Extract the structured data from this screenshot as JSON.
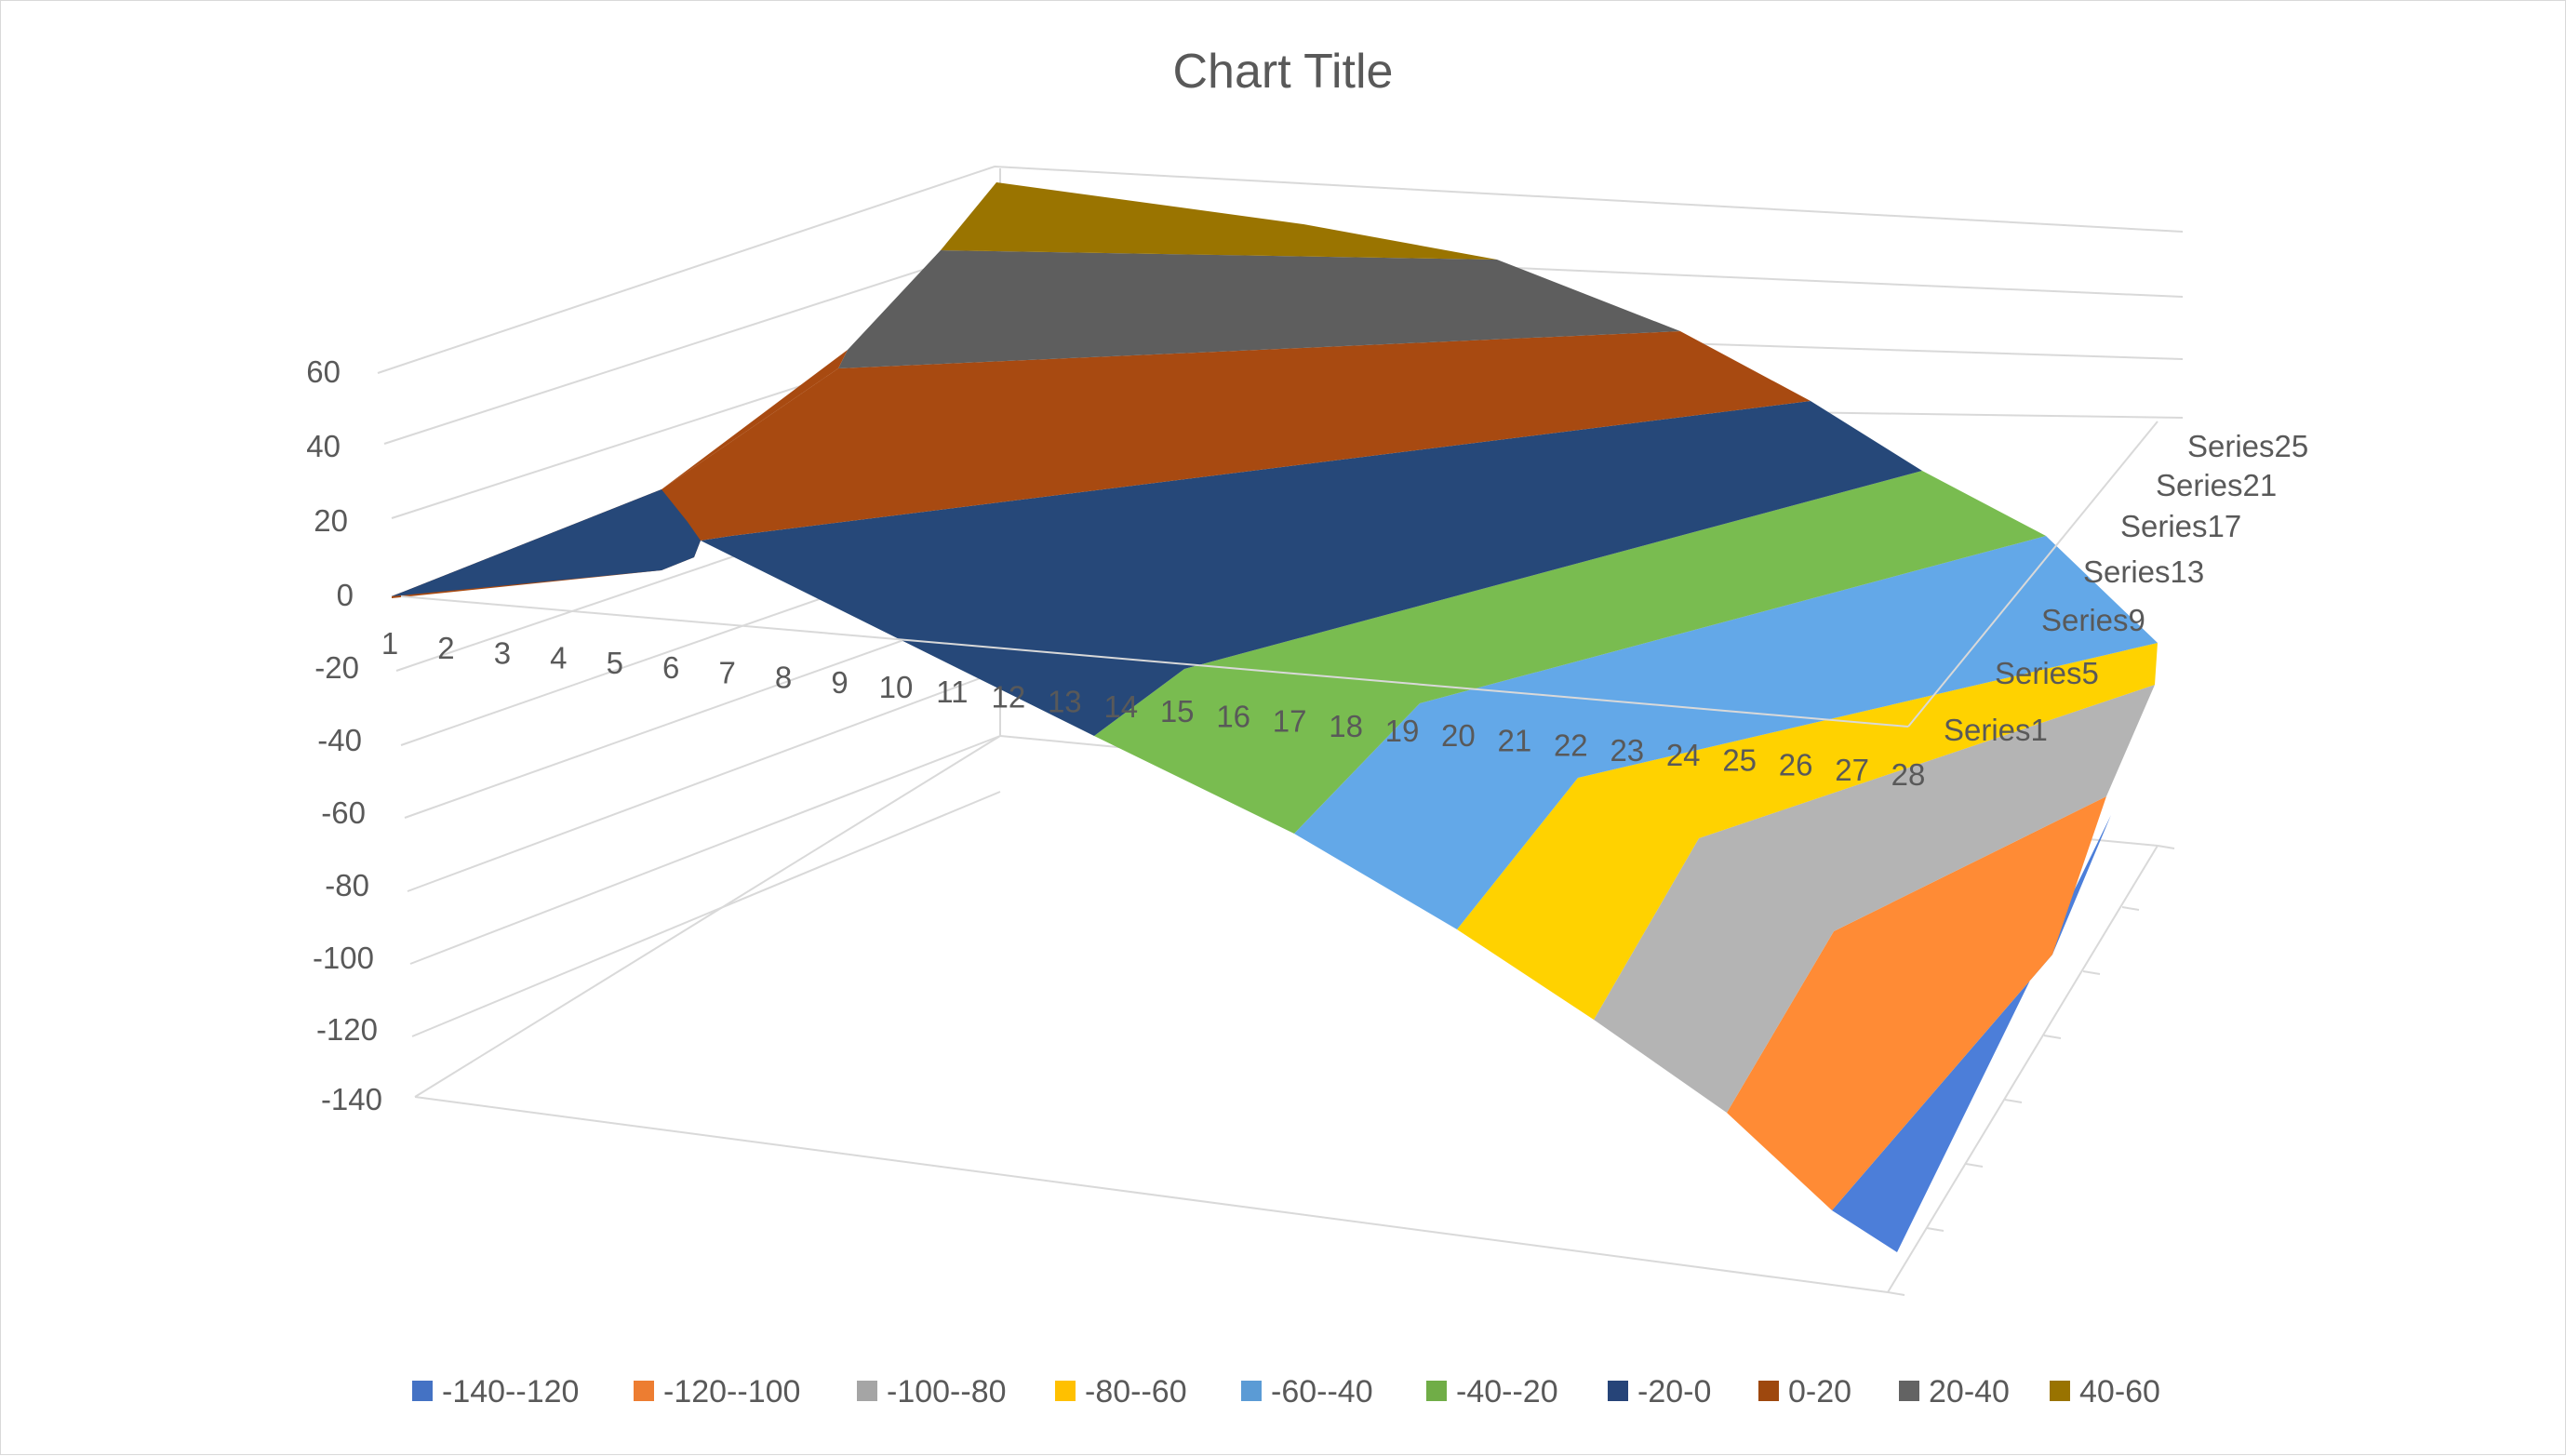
{
  "chart_data": {
    "type": "surface-3d",
    "title": "Chart Title",
    "z_axis": {
      "ticks": [
        "60",
        "40",
        "20",
        "0",
        "-20",
        "-40",
        "-60",
        "-80",
        "-100",
        "-120",
        "-140"
      ],
      "min": -140,
      "max": 60,
      "step": 20
    },
    "x_axis": {
      "categories": [
        "1",
        "2",
        "3",
        "4",
        "5",
        "6",
        "7",
        "8",
        "9",
        "10",
        "11",
        "12",
        "13",
        "14",
        "15",
        "16",
        "17",
        "18",
        "19",
        "20",
        "21",
        "22",
        "23",
        "24",
        "25",
        "26",
        "27",
        "28"
      ]
    },
    "series_axis": {
      "labels": [
        "Series1",
        "Series5",
        "Series9",
        "Series13",
        "Series17",
        "Series21",
        "Series25"
      ]
    },
    "legend": {
      "position": "bottom",
      "items": [
        {
          "label": "-140--120",
          "color": "#4472C4"
        },
        {
          "label": "-120--100",
          "color": "#ED7D31"
        },
        {
          "label": "-100--80",
          "color": "#A5A5A5"
        },
        {
          "label": "-80--60",
          "color": "#FFC000"
        },
        {
          "label": "-60--40",
          "color": "#5B9BD5"
        },
        {
          "label": "-40--20",
          "color": "#70AD47"
        },
        {
          "label": "-20-0",
          "color": "#264478"
        },
        {
          "label": "0-20",
          "color": "#9E480E"
        },
        {
          "label": "20-40",
          "color": "#636363"
        },
        {
          "label": "40-60",
          "color": "#997300"
        }
      ]
    },
    "band_colors": {
      "b40_60": "#9A7400",
      "b20_40": "#5E5E5E",
      "b0_20": "#A84A11",
      "bm20_0": "#264879",
      "bm40_m20": "#79BC50",
      "bm60_m40": "#63A8E8",
      "bm80_m60": "#FFD200",
      "bm100_m80": "#B4B4B4",
      "bm120_m100": "#FF8B35",
      "bm140_m120": "#4C7ED9"
    },
    "grid": true
  }
}
